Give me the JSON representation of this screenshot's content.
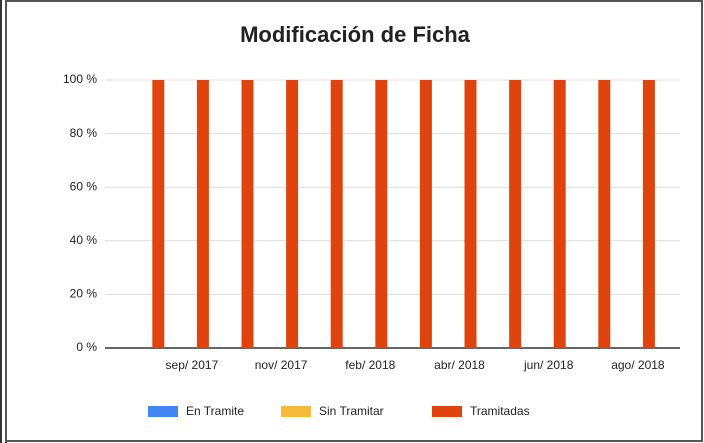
{
  "chart_data": {
    "type": "stacked_bar",
    "title": "Modificación de Ficha",
    "categories": [
      null,
      "sep/ 2017",
      null,
      "nov/ 2017",
      null,
      "feb/ 2018",
      null,
      "abr/ 2018",
      null,
      "jun/ 2018",
      null,
      "ago/ 2018"
    ],
    "series": [
      {
        "name": "En Tramite",
        "color": "#4285f4",
        "values": [
          0,
          0,
          0,
          0,
          0,
          0,
          0,
          0,
          0,
          0,
          0,
          0
        ]
      },
      {
        "name": "Sin Tramitar",
        "color": "#f6b93b",
        "values": [
          0,
          0,
          0,
          0,
          0,
          0,
          0,
          0,
          0,
          0,
          0,
          0
        ]
      },
      {
        "name": "Tramitadas",
        "color": "#e0440e",
        "values": [
          100,
          100,
          100,
          100,
          100,
          100,
          100,
          100,
          100,
          100,
          100,
          100
        ]
      }
    ],
    "ylim": [
      0,
      100
    ],
    "yticks": [
      {
        "value": 0,
        "label": "0 %"
      },
      {
        "value": 20,
        "label": "20 %"
      },
      {
        "value": 40,
        "label": "40 %"
      },
      {
        "value": 60,
        "label": "60 %"
      },
      {
        "value": 80,
        "label": "80 %"
      },
      {
        "value": 100,
        "label": "100 %"
      }
    ],
    "grid": true,
    "legend": "bottom"
  }
}
